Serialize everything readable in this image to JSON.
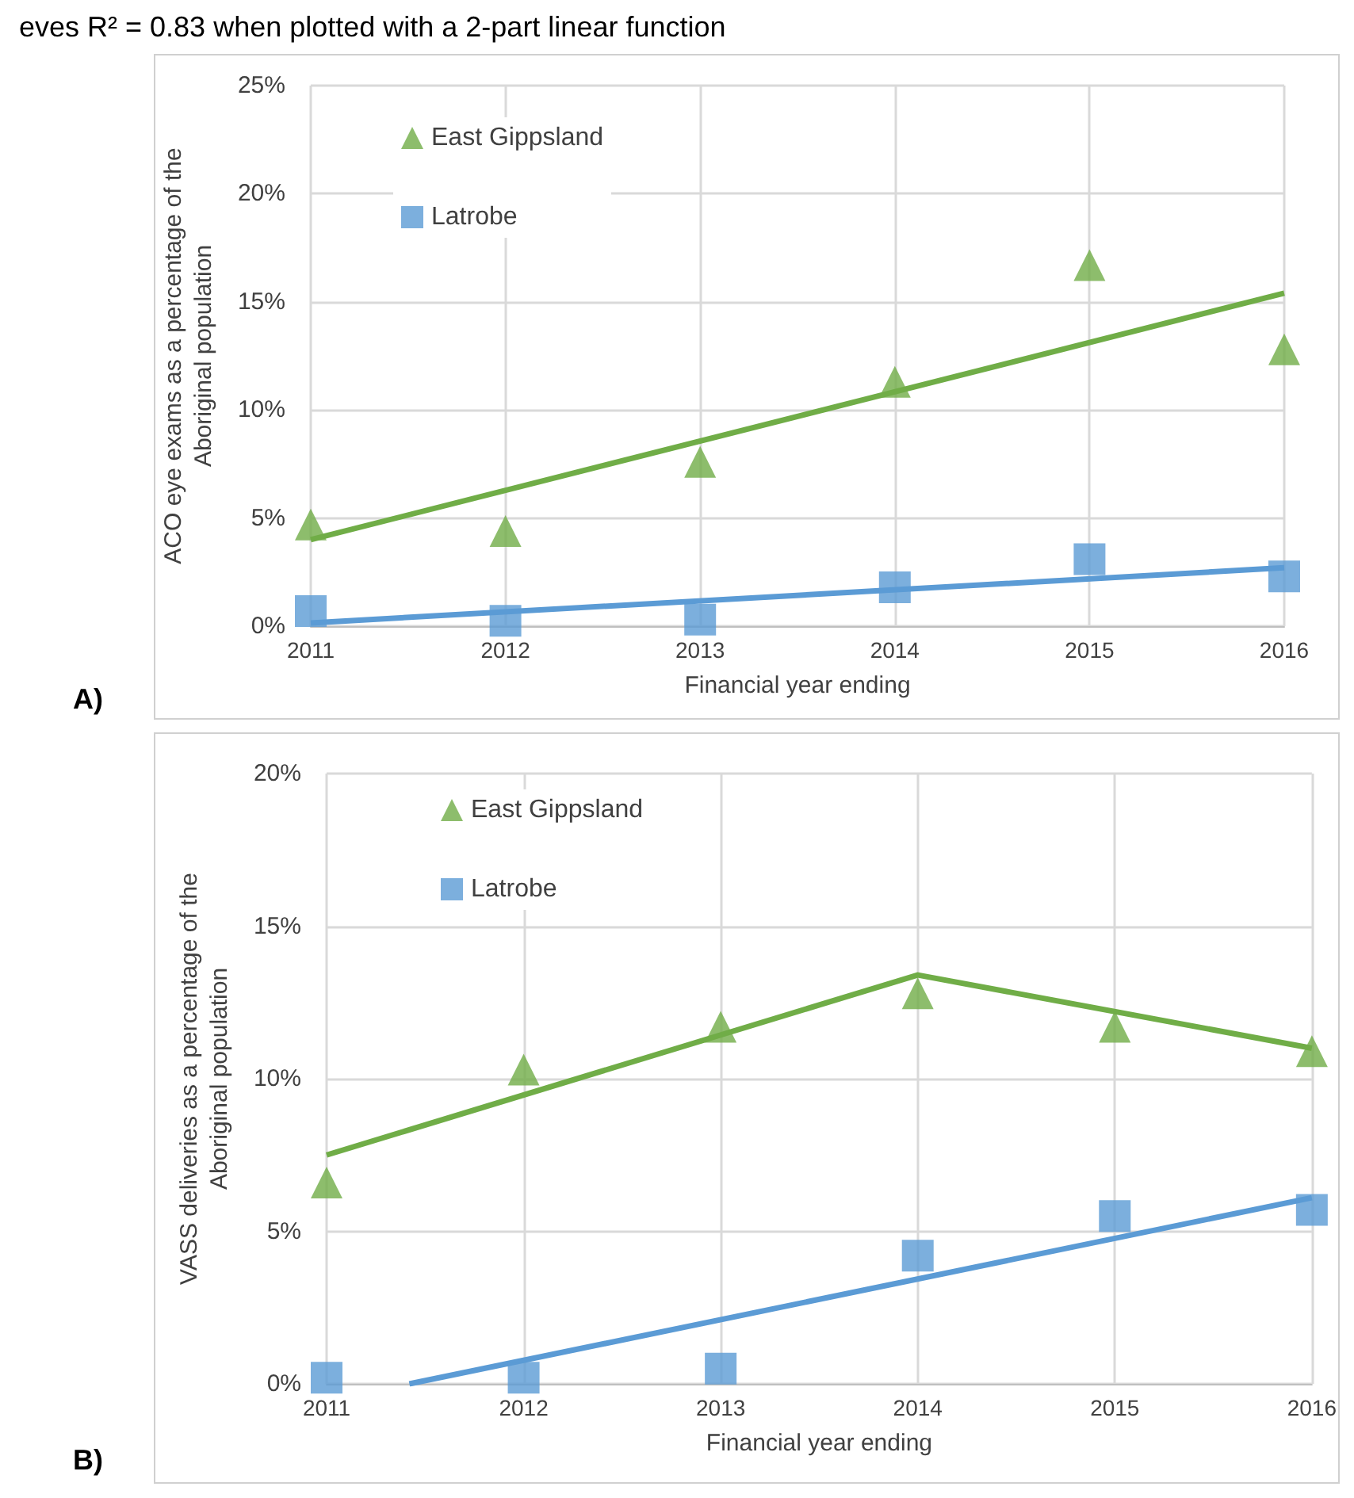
{
  "chart_data": [
    {
      "type": "scatter",
      "xlabel": "Financial year ending",
      "ylabel": "ACO eye exams as a percentage of the Aboriginal population",
      "annotations": [
        "eves R² = 0.83 when plotted with a 2-part linear function",
        "A)"
      ],
      "x": [
        2011,
        2012,
        2013,
        2014,
        2015,
        2016
      ],
      "xlim": [
        2011,
        2016
      ],
      "xticks": [
        2011,
        2012,
        2013,
        2014,
        2015,
        2016
      ],
      "ylim": [
        0,
        25
      ],
      "yticks": [
        {
          "value": 0,
          "label": "0%"
        },
        {
          "value": 5,
          "label": "5%"
        },
        {
          "value": 10,
          "label": "10%"
        },
        {
          "value": 15,
          "label": "15%"
        },
        {
          "value": 20,
          "label": "20%"
        },
        {
          "value": 25,
          "label": "25%"
        }
      ],
      "grid": true,
      "legend": "top left",
      "series": [
        {
          "name": "East Gippsland",
          "type": "scatter",
          "marker": "triangle",
          "color": "#70ad47",
          "values": [
            4.7,
            4.4,
            7.6,
            11.3,
            16.7,
            12.8
          ]
        },
        {
          "name": "Latrobe",
          "type": "scatter",
          "marker": "square",
          "color": "#5b9bd5",
          "values": [
            0.7,
            0.25,
            0.3,
            1.8,
            3.1,
            2.3
          ]
        },
        {
          "type": "line",
          "color": "#70ad47",
          "x": [
            2011,
            2016
          ],
          "values": [
            4.0,
            15.4
          ]
        },
        {
          "type": "line",
          "color": "#5b9bd5",
          "x": [
            2011,
            2016
          ],
          "values": [
            0.15,
            2.7
          ]
        }
      ]
    },
    {
      "type": "scatter",
      "xlabel": "Financial year ending",
      "ylabel": "VASS deliveries as a percentage of the Aboriginal population",
      "annotations": [
        "B)"
      ],
      "x": [
        2011,
        2012,
        2013,
        2014,
        2015,
        2016
      ],
      "xlim": [
        2011,
        2016
      ],
      "xticks": [
        2011,
        2012,
        2013,
        2014,
        2015,
        2016
      ],
      "ylim": [
        0,
        20
      ],
      "yticks": [
        {
          "value": 0,
          "label": "0%"
        },
        {
          "value": 5,
          "label": "5%"
        },
        {
          "value": 10,
          "label": "10%"
        },
        {
          "value": 15,
          "label": "15%"
        },
        {
          "value": 20,
          "label": "20%"
        }
      ],
      "grid": true,
      "legend": "top left",
      "series": [
        {
          "name": "East Gippsland",
          "type": "scatter",
          "marker": "triangle",
          "color": "#70ad47",
          "values": [
            6.6,
            10.3,
            11.7,
            12.8,
            11.7,
            10.9
          ]
        },
        {
          "name": "Latrobe",
          "type": "scatter",
          "marker": "square",
          "color": "#5b9bd5",
          "values": [
            0.2,
            0.2,
            0.5,
            4.2,
            5.5,
            5.7
          ]
        },
        {
          "type": "line",
          "color": "#70ad47",
          "x": [
            2011,
            2014,
            2016
          ],
          "values": [
            7.5,
            13.4,
            11.0
          ]
        },
        {
          "type": "line",
          "color": "#5b9bd5",
          "x": [
            2011.42,
            2016
          ],
          "values": [
            0,
            6.1
          ]
        }
      ]
    }
  ]
}
